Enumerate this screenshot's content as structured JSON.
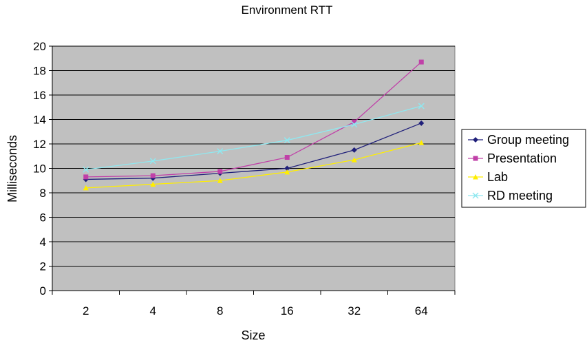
{
  "chart_data": {
    "type": "line",
    "title": "Environment RTT",
    "xlabel": "Size",
    "ylabel": "Milliseconds",
    "categories": [
      "2",
      "4",
      "8",
      "16",
      "32",
      "64"
    ],
    "ylim": [
      0,
      20
    ],
    "yticks": [
      "0",
      "2",
      "4",
      "6",
      "8",
      "10",
      "12",
      "14",
      "16",
      "18",
      "20"
    ],
    "grid": "horizontal",
    "plot_background": "#c0c0c0",
    "legend_position": "right",
    "series": [
      {
        "name": "Group meeting",
        "color": "#1f1f7a",
        "marker": "diamond",
        "values": [
          9.1,
          9.2,
          9.6,
          10.0,
          11.5,
          13.7
        ]
      },
      {
        "name": "Presentation",
        "color": "#c040a8",
        "marker": "square",
        "values": [
          9.3,
          9.4,
          9.75,
          10.9,
          13.8,
          18.7
        ]
      },
      {
        "name": "Lab",
        "color": "#ffee00",
        "marker": "triangle",
        "values": [
          8.4,
          8.7,
          9.0,
          9.7,
          10.7,
          12.1
        ]
      },
      {
        "name": "RD meeting",
        "color": "#8fe8f0",
        "marker": "x",
        "values": [
          9.9,
          10.6,
          11.4,
          12.3,
          13.6,
          15.1
        ]
      }
    ]
  }
}
